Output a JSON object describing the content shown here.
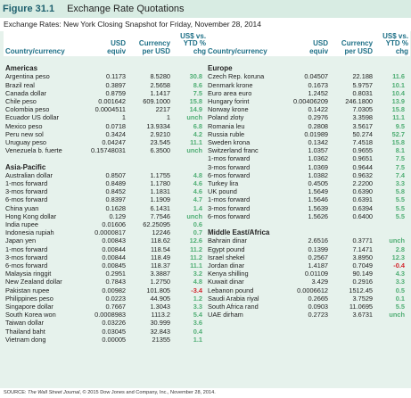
{
  "header": {
    "figure": "Figure 31.1",
    "title": "Exchange Rate Quotations"
  },
  "subtitle": "Exchange Rates: New York Closing Snapshot for Friday, November 28, 2014",
  "columns": [
    "Country/currency",
    "USD equiv",
    "Currency per USD",
    "US$ vs. YTD % chg"
  ],
  "left": [
    {
      "section": "Americas",
      "rows": [
        [
          "Argentina peso",
          "0.1173",
          "8.5280",
          "30.8"
        ],
        [
          "Brazil real",
          "0.3897",
          "2.5658",
          "8.6"
        ],
        [
          "Canada dollar",
          "0.8759",
          "1.1417",
          "7.5"
        ],
        [
          "Chile peso",
          "0.001642",
          "609.1000",
          "15.8"
        ],
        [
          "Colombia peso",
          "0.0004511",
          "2217",
          "14.9"
        ],
        [
          "Ecuador US dollar",
          "1",
          "1",
          "unch"
        ],
        [
          "Mexico peso",
          "0.0718",
          "13.9334",
          "6.8"
        ],
        [
          "Peru new sol",
          "0.3424",
          "2.9210",
          "4.2"
        ],
        [
          "Uruguay peso",
          "0.04247",
          "23.545",
          "11.1"
        ],
        [
          "Venezuela b. fuerte",
          "0.15748031",
          "6.3500",
          "unch"
        ]
      ]
    },
    {
      "section": "Asia-Pacific",
      "rows": [
        [
          "Australian dollar",
          "0.8507",
          "1.1755",
          "4.8"
        ],
        [
          "1-mos forward",
          "0.8489",
          "1.1780",
          "4.6"
        ],
        [
          "3-mos forward",
          "0.8452",
          "1.1831",
          "4.6"
        ],
        [
          "6-mos forward",
          "0.8397",
          "1.1909",
          "4.7"
        ],
        [
          "China yuan",
          "0.1628",
          "6.1431",
          "1.4"
        ],
        [
          "Hong Kong dollar",
          "0.129",
          "7.7546",
          "unch"
        ],
        [
          "India rupee",
          "0.01606",
          "62.25095",
          "0.6"
        ],
        [
          "Indonesia rupiah",
          "0.0000817",
          "12246",
          "0.7"
        ],
        [
          "Japan yen",
          "0.00843",
          "118.62",
          "12.6"
        ],
        [
          "1-mos forward",
          "0.00844",
          "118.54",
          "11.2"
        ],
        [
          "3-mos forward",
          "0.00844",
          "118.49",
          "11.2"
        ],
        [
          "6-mos forward",
          "0.00845",
          "118.37",
          "11.1"
        ],
        [
          "Malaysia ringgit",
          "0.2951",
          "3.3887",
          "3.2"
        ],
        [
          "New Zealand dollar",
          "0.7843",
          "1.2750",
          "4.8"
        ],
        [
          "Pakistan rupee",
          "0.00982",
          "101.805",
          "-3.4"
        ],
        [
          "Philippines peso",
          "0.0223",
          "44.905",
          "1.2"
        ],
        [
          "Singapore dollar",
          "0.7667",
          "1.3043",
          "3.3"
        ],
        [
          "South Korea won",
          "0.0008983",
          "1113.2",
          "5.4"
        ],
        [
          "Taiwan dollar",
          "0.03226",
          "30.999",
          "3.6"
        ],
        [
          "Thailand baht",
          "0.03045",
          "32.843",
          "0.4"
        ],
        [
          "Vietnam dong",
          "0.00005",
          "21355",
          "1.1"
        ]
      ]
    }
  ],
  "right": [
    {
      "section": "Europe",
      "rows": [
        [
          "Czech Rep. koruna",
          "0.04507",
          "22.188",
          "11.6"
        ],
        [
          "Denmark krone",
          "0.1673",
          "5.9757",
          "10.1"
        ],
        [
          "Euro area euro",
          "1.2452",
          "0.8031",
          "10.4"
        ],
        [
          "Hungary forint",
          "0.00406209",
          "246.1800",
          "13.9"
        ],
        [
          "Norway krone",
          "0.1422",
          "7.0305",
          "15.8"
        ],
        [
          "Poland zloty",
          "0.2976",
          "3.3598",
          "11.1"
        ],
        [
          "Romania leu",
          "0.2808",
          "3.5617",
          "9.5"
        ],
        [
          "Russia ruble",
          "0.01989",
          "50.274",
          "52.7"
        ],
        [
          "Sweden krona",
          "0.1342",
          "7.4518",
          "15.8"
        ],
        [
          "Switzerland franc",
          "1.0357",
          "0.9655",
          "8.1"
        ],
        [
          "1-mos forward",
          "1.0362",
          "0.9651",
          "7.5"
        ],
        [
          "3-mos forward",
          "1.0369",
          "0.9644",
          "7.5"
        ],
        [
          "6-mos forward",
          "1.0382",
          "0.9632",
          "7.4"
        ],
        [
          "Turkey lira",
          "0.4505",
          "2.2200",
          "3.3"
        ],
        [
          "UK pound",
          "1.5649",
          "0.6390",
          "5.8"
        ],
        [
          "1-mos forward",
          "1.5646",
          "0.6391",
          "5.5"
        ],
        [
          "3-mos forward",
          "1.5639",
          "0.6394",
          "5.5"
        ],
        [
          "6-mos forward",
          "1.5626",
          "0.6400",
          "5.5"
        ]
      ]
    },
    {
      "section": "Middle East/Africa",
      "rows": [
        [
          "Bahrain dinar",
          "2.6516",
          "0.3771",
          "unch"
        ],
        [
          "Egypt pound",
          "0.1399",
          "7.1471",
          "2.8"
        ],
        [
          "Israel shekel",
          "0.2567",
          "3.8950",
          "12.3"
        ],
        [
          "Jordan dinar",
          "1.4187",
          "0.7049",
          "-0.4"
        ],
        [
          "Kenya shilling",
          "0.01109",
          "90.149",
          "4.3"
        ],
        [
          "Kuwait dinar",
          "3.429",
          "0.2916",
          "3.3"
        ],
        [
          "Lebanon pound",
          "0.0006612",
          "1512.45",
          "0.5"
        ],
        [
          "Saudi Arabia riyal",
          "0.2665",
          "3.7529",
          "0.1"
        ],
        [
          "South Africa rand",
          "0.0903",
          "11.0695",
          "5.5"
        ],
        [
          "UAE dirham",
          "0.2723",
          "3.6731",
          "unch"
        ]
      ]
    }
  ],
  "source": [
    "SOURCE: ",
    "The Wall Street Journal",
    ", © 2015 Dow Jones and Company, Inc., November 28, 2014."
  ]
}
